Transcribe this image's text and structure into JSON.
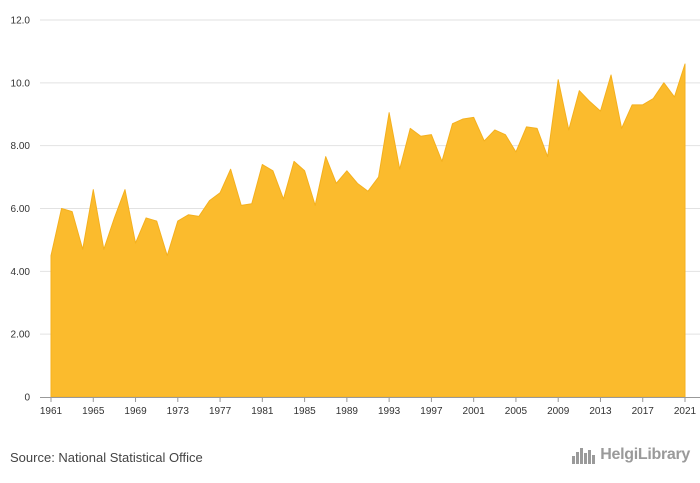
{
  "colors": {
    "area_fill": "#fbbb2d",
    "area_stroke": "#f4b01e",
    "grid": "#e2e2e2",
    "axis": "#999999",
    "logo": "#9a9a9a"
  },
  "footer": {
    "source": "Source: National Statistical Office",
    "logo_text": "HelgiLibrary"
  },
  "chart_data": {
    "type": "area",
    "title": "",
    "xlabel": "",
    "ylabel": "",
    "ylim": [
      0,
      12
    ],
    "xlim": [
      1961,
      2021
    ],
    "yticks": [
      0,
      2,
      4,
      6,
      8,
      10,
      12
    ],
    "ytick_labels": [
      "0",
      "2.00",
      "4.00",
      "6.00",
      "8.00",
      "10.0",
      "12.0"
    ],
    "xticks": [
      1961,
      1965,
      1969,
      1973,
      1977,
      1981,
      1985,
      1989,
      1993,
      1997,
      2001,
      2005,
      2009,
      2013,
      2017,
      2021
    ],
    "grid": true,
    "legend": "none",
    "series": [
      {
        "name": "Value",
        "x": [
          1961,
          1962,
          1963,
          1964,
          1965,
          1966,
          1967,
          1968,
          1969,
          1970,
          1971,
          1972,
          1973,
          1974,
          1975,
          1976,
          1977,
          1978,
          1979,
          1980,
          1981,
          1982,
          1983,
          1984,
          1985,
          1986,
          1987,
          1988,
          1989,
          1990,
          1991,
          1992,
          1993,
          1994,
          1995,
          1996,
          1997,
          1998,
          1999,
          2000,
          2001,
          2002,
          2003,
          2004,
          2005,
          2006,
          2007,
          2008,
          2009,
          2010,
          2011,
          2012,
          2013,
          2014,
          2015,
          2016,
          2017,
          2018,
          2019,
          2020,
          2021
        ],
        "values": [
          4.5,
          6.0,
          5.9,
          4.7,
          6.6,
          4.7,
          5.7,
          6.6,
          4.9,
          5.7,
          5.6,
          4.5,
          5.6,
          5.8,
          5.75,
          6.25,
          6.5,
          7.25,
          6.1,
          6.15,
          7.4,
          7.2,
          6.3,
          7.5,
          7.2,
          6.1,
          7.65,
          6.8,
          7.2,
          6.8,
          6.55,
          7.0,
          9.05,
          7.25,
          8.55,
          8.3,
          8.35,
          7.5,
          8.7,
          8.85,
          8.9,
          8.15,
          8.5,
          8.35,
          7.8,
          8.6,
          8.55,
          7.65,
          10.1,
          8.5,
          9.75,
          9.4,
          9.1,
          10.25,
          8.55,
          9.3,
          9.3,
          9.5,
          10.0,
          9.55,
          10.6
        ]
      }
    ]
  }
}
